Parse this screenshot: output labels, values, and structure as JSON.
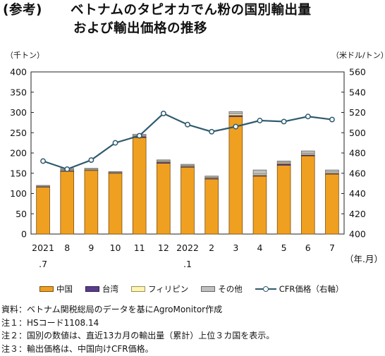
{
  "title": {
    "label": "(参考)",
    "line1": "ベトナムのタピオカでん粉の国別輸出量",
    "line2": "および輸出価格の推移"
  },
  "units": {
    "left": "（千トン）",
    "right": "（米ドル/トン）"
  },
  "colors": {
    "china": "#f0a020",
    "taiwan": "#5a3c8c",
    "philippines": "#fff4b0",
    "other": "#c0c0c0",
    "cfr_line": "#2e5a6e"
  },
  "chart_data": {
    "type": "bar",
    "categories": [
      "2021\n.7",
      "8",
      "9",
      "10",
      "11",
      "12",
      "2022\n.1",
      "2",
      "3",
      "4",
      "5",
      "6",
      "7"
    ],
    "x_unit_label": "（年.月）",
    "series": [
      {
        "name": "中国",
        "values": [
          116,
          155,
          157,
          150,
          238,
          175,
          165,
          136,
          290,
          143,
          170,
          193,
          148
        ]
      },
      {
        "name": "台湾",
        "values": [
          1,
          2,
          1,
          1,
          3,
          3,
          2,
          2,
          3,
          2,
          4,
          3,
          2
        ]
      },
      {
        "name": "フィリピン",
        "values": [
          1,
          2,
          2,
          1,
          2,
          2,
          2,
          2,
          4,
          3,
          3,
          3,
          3
        ]
      },
      {
        "name": "その他",
        "values": [
          2,
          3,
          2,
          2,
          3,
          3,
          3,
          3,
          5,
          10,
          3,
          6,
          5
        ]
      },
      {
        "name": "CFR価格（右軸）",
        "axis": "right",
        "values": [
          472,
          464,
          473,
          490,
          497,
          519,
          508,
          501,
          506,
          512,
          511,
          516,
          513
        ]
      }
    ],
    "y_left": {
      "min": 0,
      "max": 400,
      "ticks": [
        0,
        50,
        100,
        150,
        200,
        250,
        300,
        350,
        400
      ]
    },
    "y_right": {
      "min": 400,
      "max": 560,
      "ticks": [
        400,
        420,
        440,
        460,
        480,
        500,
        520,
        540,
        560
      ]
    },
    "grid": false,
    "legend_position": "bottom"
  },
  "notes": [
    "資料：ベトナム関税総局のデータを基にAgroMonitor作成",
    "注１：HSコード1108.14",
    "注２：国別の数値は、直近13カ月の輸出量（累計）上位３カ国を表示。",
    "注３：輸出価格は、中国向けCFR価格。"
  ]
}
